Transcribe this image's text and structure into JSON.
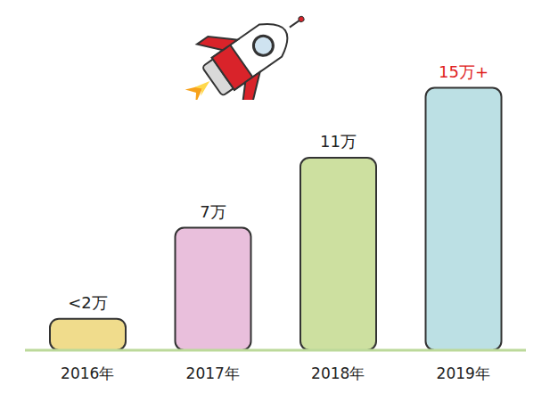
{
  "chart_data": {
    "type": "bar",
    "categories": [
      "2016年",
      "2017年",
      "2018年",
      "2019年"
    ],
    "values": [
      1.8,
      7,
      11,
      15
    ],
    "value_labels": [
      "<2万",
      "7万",
      "11万",
      "15万+"
    ],
    "data_labels": true,
    "colors": [
      "#f0dc8c",
      "#e9bfdc",
      "#cde0a0",
      "#bce0e4"
    ],
    "ylim": [
      0,
      19
    ],
    "tick_labels": "x",
    "grid": false
  }
}
